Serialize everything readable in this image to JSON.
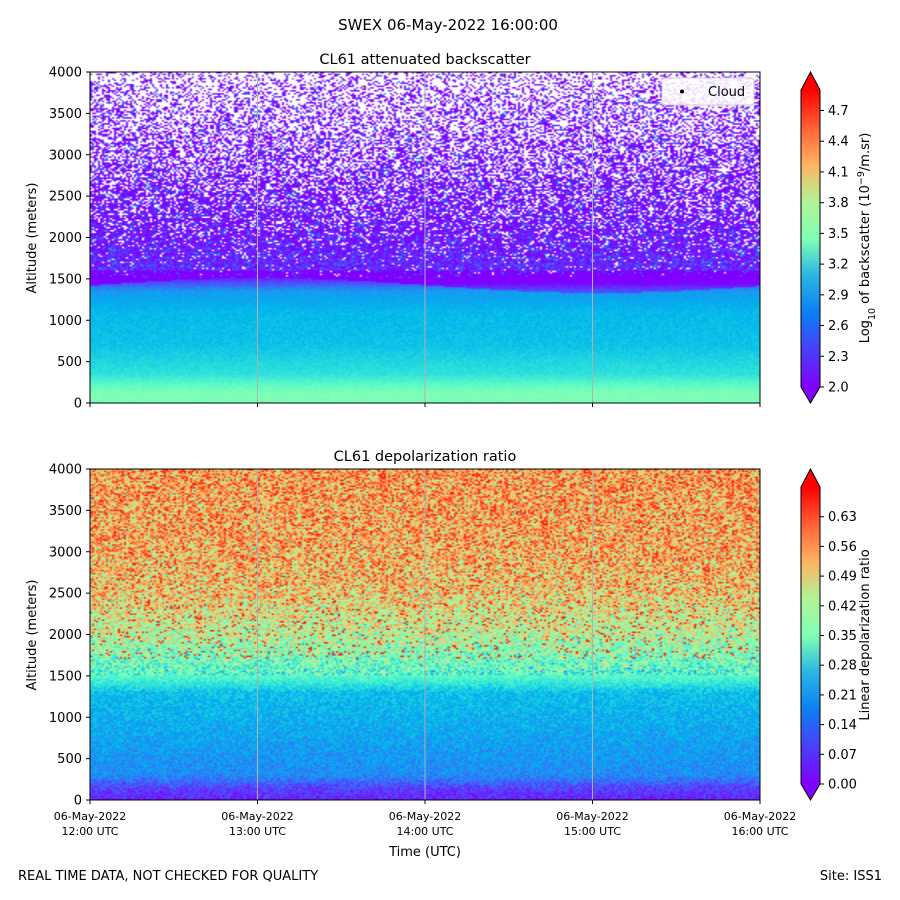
{
  "suptitle": "SWEX 06-May-2022 16:00:00",
  "footer": {
    "left": "REAL TIME DATA, NOT CHECKED FOR QUALITY",
    "right": "Site: ISS1"
  },
  "chart_data": [
    {
      "type": "heatmap",
      "title": "CL61 attenuated backscatter",
      "xlabel": "",
      "ylabel": "Altitude (meters)",
      "ylim": [
        0,
        4000
      ],
      "yticks": [
        "0",
        "500",
        "1000",
        "1500",
        "2000",
        "2500",
        "3000",
        "3500",
        "4000"
      ],
      "xlim_hours": [
        12,
        16
      ],
      "colormap": "rainbow",
      "colorbar": {
        "label": "Log10 of backscatter (10^-9/m.sr)",
        "label_parts": {
          "pre": "Log",
          "sub": "10",
          "mid": " of backscatter (10",
          "sup": "−9",
          "post": "/m.sr)"
        },
        "range": [
          2.0,
          4.9
        ],
        "ticks": [
          "2.0",
          "2.3",
          "2.6",
          "2.9",
          "3.2",
          "3.5",
          "3.8",
          "4.1",
          "4.4",
          "4.7"
        ],
        "extend": "both"
      },
      "legend": {
        "label": "Cloud",
        "marker": "dot",
        "position": "top-right"
      },
      "profile": [
        {
          "alt": 0,
          "value": 3.4
        },
        {
          "alt": 100,
          "value": 3.45
        },
        {
          "alt": 200,
          "value": 3.3
        },
        {
          "alt": 350,
          "value": 3.0
        },
        {
          "alt": 700,
          "value": 2.8
        },
        {
          "alt": 1100,
          "value": 2.75
        },
        {
          "alt": 1350,
          "value": 2.6
        },
        {
          "alt": 1500,
          "value": 2.15
        },
        {
          "alt": 2000,
          "value": 2.05
        },
        {
          "alt": 2600,
          "value": 2.02
        },
        {
          "alt": 4000,
          "value": 2.0
        }
      ],
      "data_gaps_above_m": 2600
    },
    {
      "type": "heatmap",
      "title": "CL61 depolarization ratio",
      "xlabel": "Time (UTC)",
      "ylabel": "Altitude (meters)",
      "ylim": [
        0,
        4000
      ],
      "yticks": [
        "0",
        "500",
        "1000",
        "1500",
        "2000",
        "2500",
        "3000",
        "3500",
        "4000"
      ],
      "xlim_hours": [
        12,
        16
      ],
      "xticks": [
        {
          "date": "06-May-2022",
          "time": "12:00 UTC"
        },
        {
          "date": "06-May-2022",
          "time": "13:00 UTC"
        },
        {
          "date": "06-May-2022",
          "time": "14:00 UTC"
        },
        {
          "date": "06-May-2022",
          "time": "15:00 UTC"
        },
        {
          "date": "06-May-2022",
          "time": "16:00 UTC"
        }
      ],
      "colormap": "rainbow",
      "colorbar": {
        "label": "Linear depolarization ratio",
        "range": [
          0.0,
          0.7
        ],
        "ticks": [
          "0.00",
          "0.07",
          "0.14",
          "0.21",
          "0.28",
          "0.35",
          "0.42",
          "0.49",
          "0.56",
          "0.63"
        ],
        "extend": "both"
      },
      "profile": [
        {
          "alt": 0,
          "value": 0.03
        },
        {
          "alt": 150,
          "value": 0.06
        },
        {
          "alt": 300,
          "value": 0.13
        },
        {
          "alt": 800,
          "value": 0.16
        },
        {
          "alt": 1300,
          "value": 0.19
        },
        {
          "alt": 1500,
          "value": 0.3
        },
        {
          "alt": 2000,
          "value": 0.42
        },
        {
          "alt": 2500,
          "value": 0.5
        },
        {
          "alt": 3000,
          "value": 0.53
        },
        {
          "alt": 4000,
          "value": 0.55
        }
      ]
    }
  ]
}
